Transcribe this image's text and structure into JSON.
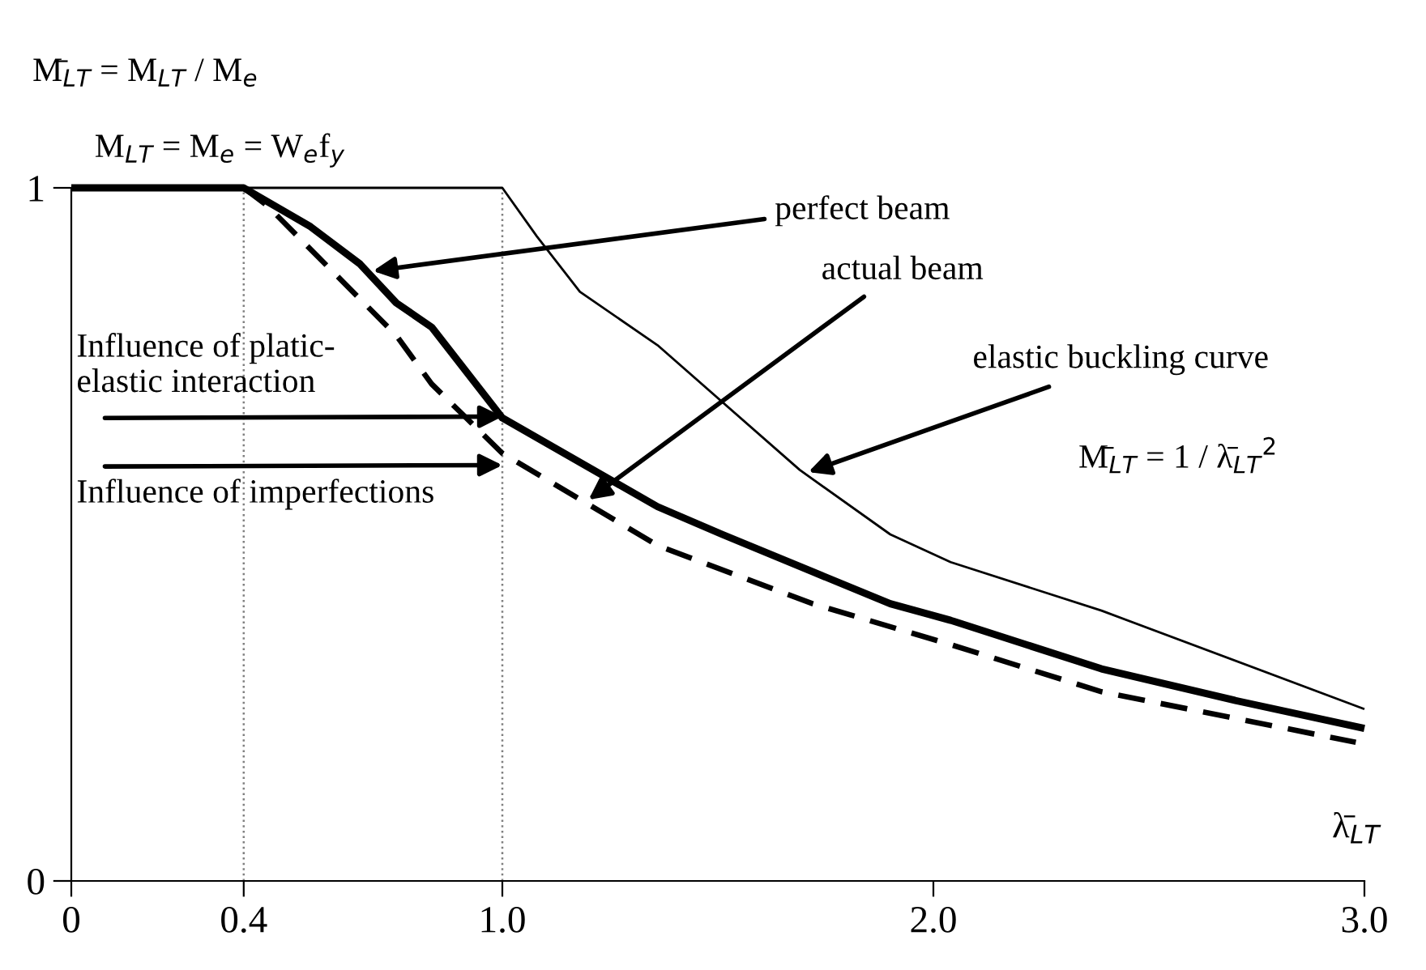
{
  "chart_data": {
    "type": "line",
    "xlabel": "λ̄$_{LT}$",
    "ylabel": "M̄$_{LT}$ = M$_{LT}$ / M$_{e}$",
    "series": [
      {
        "color": "#000000",
        "x": [
          0,
          1.0,
          1.08,
          1.18,
          1.36,
          1.69,
          1.9,
          2.04,
          2.39,
          3.0
        ],
        "values": [
          1,
          1,
          0.93,
          0.85,
          0.773,
          0.593,
          0.5,
          0.46,
          0.39,
          0.248
        ]
      },
      {
        "color": "#000000",
        "x": [
          0,
          0.4,
          0.555,
          0.67,
          0.754,
          0.836,
          1.0,
          1.36,
          1.51,
          1.72,
          1.9,
          2.04,
          2.39,
          2.71,
          3.0
        ],
        "values": [
          1,
          1,
          0.944,
          0.89,
          0.834,
          0.799,
          0.668,
          0.54,
          0.5,
          0.446,
          0.4,
          0.376,
          0.306,
          0.259,
          0.22
        ]
      },
      {
        "color": "#000000",
        "line_style": "dashed",
        "x": [
          0.4,
          0.455,
          0.754,
          0.836,
          1.0,
          1.36,
          1.72,
          2.04,
          2.39,
          2.98
        ],
        "values": [
          1,
          0.974,
          0.787,
          0.717,
          0.617,
          0.484,
          0.4,
          0.341,
          0.273,
          0.2
        ]
      }
    ],
    "xlim": [
      0,
      3.0
    ],
    "ylim": [
      0,
      1
    ],
    "xticks": [
      0,
      0.4,
      {
        "value": 1.0,
        "label": "1.0"
      },
      {
        "value": 2.0,
        "label": "2.0"
      },
      {
        "value": 3.0,
        "label": "3.0"
      }
    ],
    "yticks": [
      0,
      1
    ],
    "ref_lines": [
      {
        "axis": "x",
        "value": 0.4,
        "line_style": "dotted",
        "color": "#808080"
      },
      {
        "axis": "x",
        "value": 1.0,
        "line_style": "dotted",
        "color": "#808080"
      }
    ],
    "annotations": [
      {
        "text": "perfect beam",
        "x": 0.7,
        "y": 0.88
      },
      {
        "text": "actual beam",
        "x": 1.2,
        "y": 0.55
      },
      {
        "text": "elastic buckling curve",
        "x": 1.71,
        "y": 0.59
      },
      "M̄$_{LT}$ = 1 / λ̄$_{LT}$$^{2}$",
      {
        "text": "Influence of platic-\nelastic interaction",
        "x": 1.0,
        "y": 0.67
      },
      {
        "text": "Influence of imperfections",
        "x": 1.0,
        "y": 0.6
      },
      "M$_{LT}$ = M$_{e}$ = W$_{e}$f$_{y}$"
    ],
    "grid": false,
    "legend": false
  }
}
